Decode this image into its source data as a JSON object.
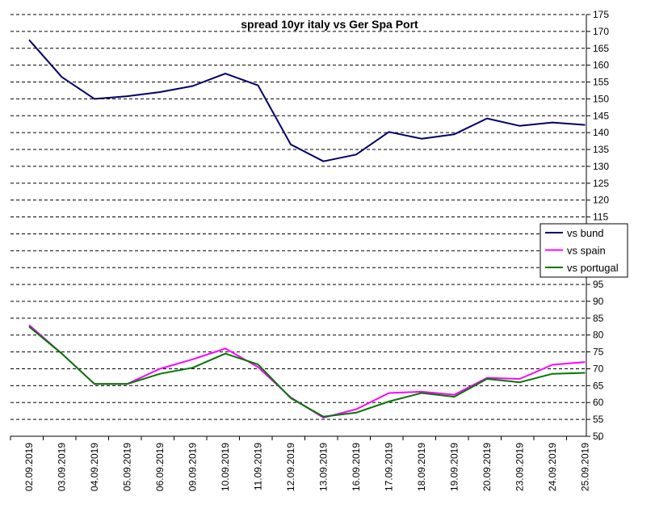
{
  "chart_data": {
    "type": "line",
    "title": "spread 10yr italy vs Ger Spa Port",
    "xlabel": "",
    "ylabel": "",
    "categories": [
      "02.09.2019",
      "03.09.2019",
      "04.09.2019",
      "05.09.2019",
      "06.09.2019",
      "09.09.2019",
      "10.09.2019",
      "11.09.2019",
      "12.09.2019",
      "13.09.2019",
      "16.09.2019",
      "17.09.2019",
      "18.09.2019",
      "19.09.2019",
      "20.09.2019",
      "23.09.2019",
      "24.09.2019",
      "25.09.2019"
    ],
    "ylim": [
      50,
      175
    ],
    "ytick_step": 5,
    "y_axis_position": "right",
    "grid": "horizontal-dashed",
    "legend_position": "right-middle",
    "series": [
      {
        "name": "vs bund",
        "color": "#000066",
        "values": [
          167.5,
          156.5,
          150,
          150.8,
          152,
          153.8,
          157.5,
          154,
          136.5,
          131.5,
          133.5,
          140.2,
          138.2,
          139.5,
          144.2,
          142,
          143,
          142.3
        ]
      },
      {
        "name": "vs spain",
        "color": "#ff00ff",
        "values": [
          83,
          74.5,
          65.5,
          65.5,
          70,
          72.8,
          76,
          70.5,
          61.5,
          55.5,
          58,
          62.8,
          63.2,
          62.3,
          67.3,
          67,
          71.2,
          72
        ]
      },
      {
        "name": "vs portugal",
        "color": "#007700",
        "values": [
          82.5,
          74.5,
          65.5,
          65.5,
          68.5,
          70.3,
          74.5,
          71.3,
          61.3,
          55.8,
          57,
          60.3,
          62.8,
          61.7,
          67,
          66,
          68.5,
          68.8
        ]
      }
    ]
  }
}
